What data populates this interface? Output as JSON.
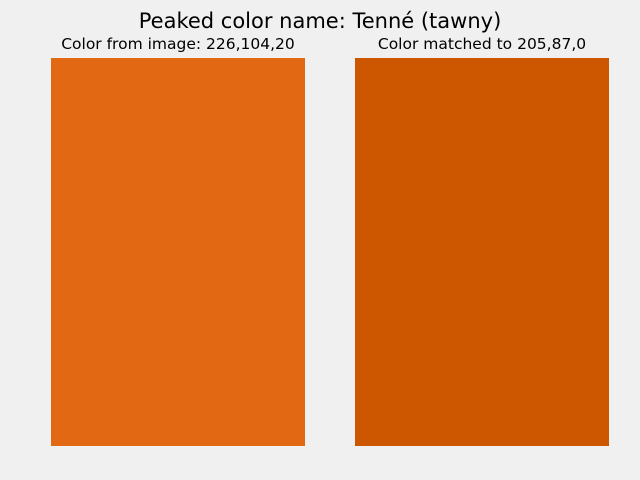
{
  "title": "Peaked color name: Tenné (tawny)",
  "panels": [
    {
      "label": "Color from image: 226,104,20",
      "rgb": [
        226,
        104,
        20
      ],
      "color": "#e26814"
    },
    {
      "label": "Color matched to 205,87,0",
      "rgb": [
        205,
        87,
        0
      ],
      "color": "#cd5700"
    }
  ],
  "colors": {
    "background": "#f0f0f0",
    "text": "#000000"
  }
}
